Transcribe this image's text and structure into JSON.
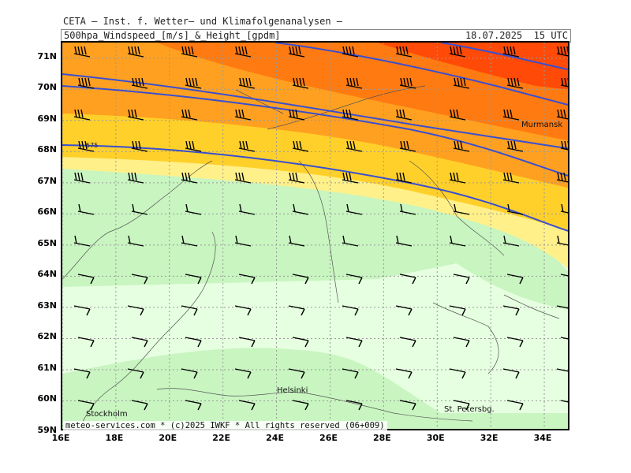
{
  "header": {
    "title": "CETA — Inst. f. Wetter— und Klimafolgenanalysen —",
    "product": "500hpa_Windspeed_[m/s]_&_Height_[gpdm]",
    "valid_time": "18.07.2025  15 UTC"
  },
  "map": {
    "lat_labels": [
      "71N",
      "70N",
      "69N",
      "68N",
      "67N",
      "66N",
      "65N",
      "64N",
      "63N",
      "62N",
      "61N",
      "60N",
      "59N"
    ],
    "lon_labels": [
      "16E",
      "18E",
      "20E",
      "22E",
      "24E",
      "26E",
      "28E",
      "30E",
      "32E",
      "34E"
    ],
    "lat_range": [
      59,
      71.5
    ],
    "lon_range": [
      16,
      35
    ],
    "contour_label": "575",
    "cities": [
      "Stockholm",
      "Helsinki",
      "St. Petersbg.",
      "Murmansk"
    ],
    "colors": {
      "speed_band_1": "#e6ffe0",
      "speed_band_2": "#c8f5c0",
      "speed_band_3": "#fff08a",
      "speed_band_4": "#ffd02a",
      "speed_band_5": "#ffa020",
      "speed_band_6": "#ff7a10",
      "speed_band_7": "#ff4a08",
      "contour": "#3a4fd0",
      "grid": "#9a9a9a"
    }
  },
  "footer": {
    "credit": "meteo-services.com * (c)2025 IWKF * All rights reserved (06+009)"
  }
}
